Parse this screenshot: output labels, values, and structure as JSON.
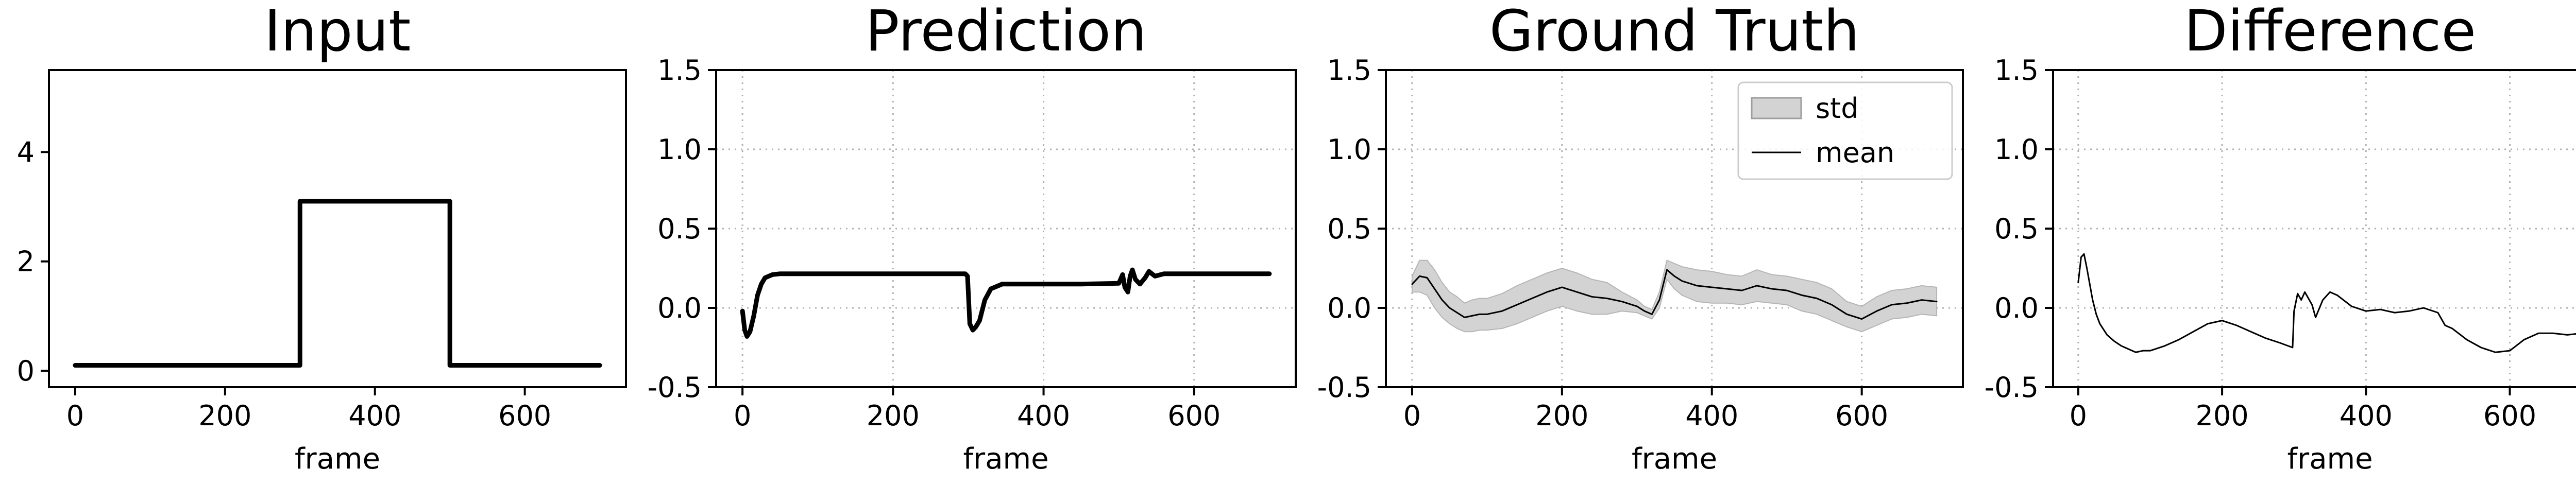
{
  "chart_data": [
    {
      "type": "line",
      "title": "Input",
      "xlabel": "frame",
      "ylabel": "",
      "xlim": [
        -35,
        735
      ],
      "ylim": [
        -0.3,
        5.5
      ],
      "xticks": [
        0,
        200,
        400,
        600
      ],
      "yticks": [
        0,
        2,
        4
      ],
      "grid": false,
      "series": [
        {
          "color": "#000000",
          "x": [
            0,
            300,
            300,
            500,
            500,
            700
          ],
          "y": [
            0.1,
            0.1,
            3.1,
            3.1,
            0.1,
            0.1
          ]
        }
      ]
    },
    {
      "type": "line",
      "title": "Prediction",
      "xlabel": "frame",
      "ylabel": "",
      "xlim": [
        -35,
        735
      ],
      "ylim": [
        -0.5,
        1.5
      ],
      "xticks": [
        0,
        200,
        400,
        600
      ],
      "yticks": [
        -0.5,
        0.0,
        0.5,
        1.0,
        1.5
      ],
      "grid": true,
      "series": [
        {
          "color": "#000000",
          "x": [
            0,
            3,
            6,
            10,
            15,
            20,
            25,
            30,
            40,
            50,
            70,
            100,
            200,
            296,
            299,
            302,
            306,
            310,
            315,
            322,
            330,
            345,
            380,
            450,
            500,
            505,
            508,
            512,
            515,
            518,
            522,
            528,
            535,
            540,
            548,
            560,
            600,
            700
          ],
          "y": [
            -0.02,
            -0.14,
            -0.18,
            -0.15,
            -0.05,
            0.08,
            0.15,
            0.19,
            0.21,
            0.215,
            0.215,
            0.215,
            0.215,
            0.215,
            0.2,
            -0.1,
            -0.14,
            -0.12,
            -0.08,
            0.05,
            0.12,
            0.15,
            0.15,
            0.15,
            0.155,
            0.21,
            0.13,
            0.1,
            0.2,
            0.24,
            0.18,
            0.15,
            0.19,
            0.23,
            0.2,
            0.215,
            0.215,
            0.215
          ]
        }
      ]
    },
    {
      "type": "area",
      "title": "Ground Truth",
      "xlabel": "frame",
      "ylabel": "",
      "xlim": [
        -35,
        735
      ],
      "ylim": [
        -0.5,
        1.5
      ],
      "xticks": [
        0,
        200,
        400,
        600
      ],
      "yticks": [
        -0.5,
        0.0,
        0.5,
        1.0,
        1.5
      ],
      "grid": true,
      "legend_position": "top-right",
      "legend": [
        {
          "label": "std",
          "kind": "patch"
        },
        {
          "label": "mean",
          "kind": "line"
        }
      ],
      "series": [
        {
          "name": "mean",
          "color": "#000000",
          "fill": "#d3d3d3",
          "x": [
            0,
            10,
            20,
            30,
            40,
            50,
            60,
            70,
            80,
            90,
            100,
            120,
            140,
            160,
            180,
            200,
            220,
            240,
            260,
            280,
            300,
            310,
            320,
            330,
            340,
            350,
            360,
            380,
            400,
            420,
            440,
            460,
            480,
            500,
            520,
            540,
            560,
            580,
            600,
            620,
            640,
            660,
            680,
            700
          ],
          "y": [
            0.15,
            0.2,
            0.19,
            0.12,
            0.05,
            0.0,
            -0.03,
            -0.06,
            -0.05,
            -0.04,
            -0.04,
            -0.02,
            0.02,
            0.06,
            0.1,
            0.13,
            0.1,
            0.07,
            0.06,
            0.04,
            0.01,
            -0.02,
            -0.04,
            0.05,
            0.24,
            0.2,
            0.17,
            0.14,
            0.13,
            0.12,
            0.11,
            0.14,
            0.12,
            0.11,
            0.08,
            0.06,
            0.02,
            -0.04,
            -0.07,
            -0.02,
            0.02,
            0.03,
            0.05,
            0.04
          ],
          "std": [
            0.05,
            0.1,
            0.11,
            0.12,
            0.11,
            0.1,
            0.1,
            0.09,
            0.1,
            0.1,
            0.1,
            0.11,
            0.12,
            0.12,
            0.12,
            0.12,
            0.12,
            0.11,
            0.1,
            0.06,
            0.04,
            0.03,
            0.03,
            0.05,
            0.06,
            0.08,
            0.09,
            0.1,
            0.1,
            0.09,
            0.09,
            0.1,
            0.09,
            0.09,
            0.1,
            0.1,
            0.1,
            0.08,
            0.08,
            0.09,
            0.09,
            0.09,
            0.09,
            0.09
          ]
        }
      ]
    },
    {
      "type": "line",
      "title": "Difference",
      "xlabel": "frame",
      "ylabel": "",
      "xlim": [
        -35,
        735
      ],
      "ylim": [
        -0.5,
        1.5
      ],
      "xticks": [
        0,
        200,
        400,
        600
      ],
      "yticks": [
        -0.5,
        0.0,
        0.5,
        1.0,
        1.5
      ],
      "grid": true,
      "series": [
        {
          "color": "#000000",
          "x": [
            0,
            4,
            8,
            12,
            16,
            20,
            25,
            30,
            40,
            50,
            60,
            70,
            80,
            90,
            100,
            120,
            140,
            160,
            180,
            200,
            220,
            240,
            260,
            280,
            298,
            300,
            305,
            310,
            315,
            320,
            325,
            330,
            340,
            350,
            360,
            380,
            400,
            420,
            440,
            460,
            480,
            500,
            510,
            520,
            540,
            560,
            580,
            600,
            620,
            640,
            660,
            680,
            700
          ],
          "y": [
            0.16,
            0.32,
            0.34,
            0.25,
            0.15,
            0.05,
            -0.04,
            -0.1,
            -0.17,
            -0.21,
            -0.24,
            -0.26,
            -0.28,
            -0.27,
            -0.27,
            -0.24,
            -0.2,
            -0.15,
            -0.1,
            -0.08,
            -0.11,
            -0.15,
            -0.19,
            -0.22,
            -0.25,
            -0.02,
            0.09,
            0.05,
            0.1,
            0.06,
            0.02,
            -0.06,
            0.05,
            0.1,
            0.08,
            0.01,
            -0.02,
            -0.01,
            -0.03,
            -0.02,
            0.0,
            -0.03,
            -0.11,
            -0.13,
            -0.2,
            -0.25,
            -0.28,
            -0.27,
            -0.2,
            -0.16,
            -0.16,
            -0.17,
            -0.16
          ]
        }
      ]
    }
  ]
}
